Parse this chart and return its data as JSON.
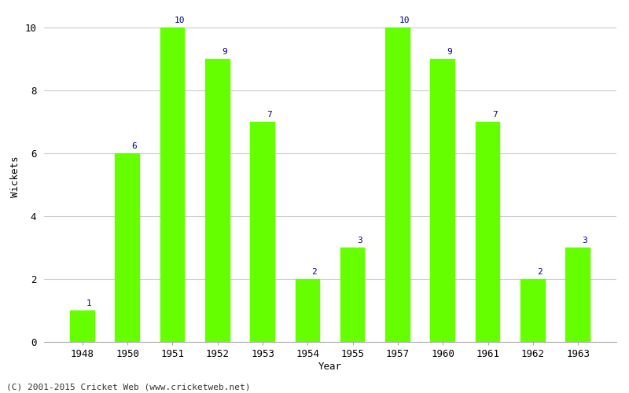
{
  "years": [
    "1948",
    "1950",
    "1951",
    "1952",
    "1953",
    "1954",
    "1955",
    "1957",
    "1960",
    "1961",
    "1962",
    "1963"
  ],
  "wickets": [
    1,
    6,
    10,
    9,
    7,
    2,
    3,
    10,
    9,
    7,
    2,
    3
  ],
  "bar_color": "#66ff00",
  "bar_edge_color": "#66ff00",
  "label_color": "#00008B",
  "xlabel": "Year",
  "ylabel": "Wickets",
  "ylim": [
    0,
    10
  ],
  "yticks": [
    0,
    2,
    4,
    6,
    8,
    10
  ],
  "grid_color": "#cccccc",
  "background_color": "#ffffff",
  "footer": "(C) 2001-2015 Cricket Web (www.cricketweb.net)",
  "label_fontsize": 8,
  "axis_fontsize": 9,
  "footer_fontsize": 8
}
